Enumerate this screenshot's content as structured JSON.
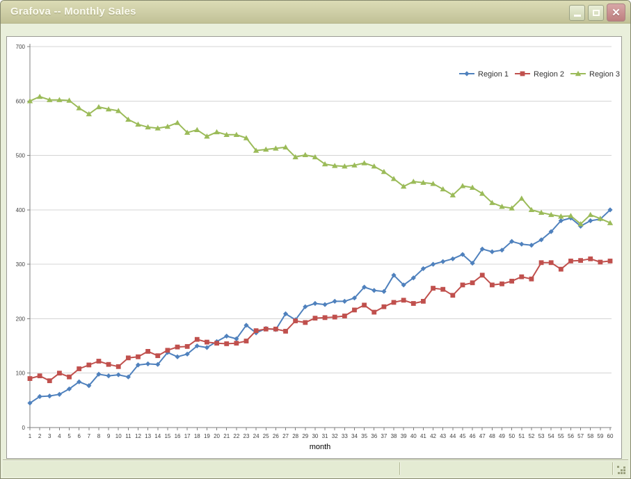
{
  "window": {
    "title": "Grafova -- Monthly Sales",
    "controls": {
      "minimize": "minimize",
      "maximize": "maximize",
      "close_glyph": "✕"
    }
  },
  "colors": {
    "titlebar": "#c9c9a0",
    "window_body": "#e9efdb",
    "plot_background": "#ffffff",
    "gridline": "#d4d4d4",
    "axis": "#7f7f7f",
    "tick_label": "#404040"
  },
  "chart_data": {
    "type": "line",
    "title": "",
    "xlabel": "month",
    "ylabel": "",
    "ylim": [
      0,
      700
    ],
    "yticks": [
      0,
      100,
      200,
      300,
      400,
      500,
      600,
      700
    ],
    "grid": true,
    "legend_position": "top-right",
    "x": [
      1,
      2,
      3,
      4,
      5,
      6,
      7,
      8,
      9,
      10,
      11,
      12,
      13,
      14,
      15,
      16,
      17,
      18,
      19,
      20,
      21,
      22,
      23,
      24,
      25,
      26,
      27,
      28,
      29,
      30,
      31,
      32,
      33,
      34,
      35,
      36,
      37,
      38,
      39,
      40,
      41,
      42,
      43,
      44,
      45,
      46,
      47,
      48,
      49,
      50,
      51,
      52,
      53,
      54,
      55,
      56,
      57,
      58,
      59,
      60
    ],
    "series": [
      {
        "name": "Region 1",
        "color": "#4f81bd",
        "marker": "diamond",
        "values": [
          45,
          57,
          58,
          61,
          71,
          84,
          77,
          98,
          95,
          97,
          93,
          115,
          117,
          116,
          138,
          130,
          135,
          150,
          147,
          158,
          168,
          163,
          188,
          174,
          182,
          180,
          209,
          198,
          222,
          228,
          226,
          232,
          232,
          238,
          258,
          252,
          250,
          280,
          262,
          275,
          292,
          300,
          305,
          310,
          318,
          302,
          328,
          323,
          326,
          342,
          337,
          335,
          345,
          360,
          380,
          385,
          370,
          380,
          383,
          400
        ]
      },
      {
        "name": "Region 2",
        "color": "#c0504d",
        "marker": "square",
        "values": [
          90,
          95,
          86,
          100,
          93,
          108,
          115,
          122,
          116,
          112,
          128,
          130,
          140,
          132,
          142,
          148,
          149,
          162,
          157,
          155,
          154,
          155,
          159,
          178,
          181,
          181,
          177,
          196,
          193,
          201,
          202,
          203,
          205,
          216,
          225,
          212,
          222,
          230,
          234,
          228,
          232,
          256,
          254,
          243,
          262,
          266,
          280,
          262,
          264,
          269,
          277,
          273,
          303,
          303,
          291,
          306,
          307,
          310,
          304,
          306
        ]
      },
      {
        "name": "Region 3",
        "color": "#9bbb59",
        "marker": "triangle",
        "values": [
          600,
          608,
          602,
          602,
          601,
          587,
          576,
          589,
          585,
          582,
          566,
          557,
          552,
          550,
          553,
          560,
          542,
          547,
          535,
          543,
          538,
          538,
          532,
          509,
          511,
          513,
          515,
          497,
          501,
          497,
          484,
          481,
          480,
          482,
          486,
          480,
          470,
          457,
          443,
          452,
          450,
          448,
          438,
          427,
          444,
          441,
          430,
          413,
          406,
          403,
          421,
          400,
          395,
          391,
          388,
          389,
          374,
          391,
          384,
          376
        ]
      }
    ]
  },
  "statusbar": {
    "pane1_text": "",
    "pane2_text": ""
  }
}
